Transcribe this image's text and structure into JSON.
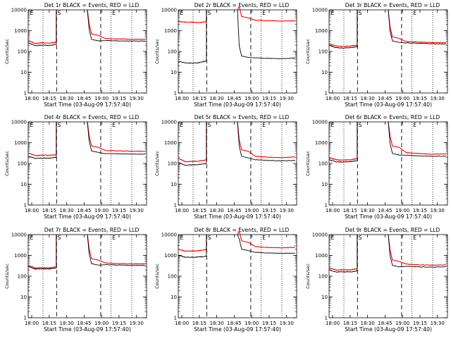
{
  "figure_title": "",
  "chart_data": [
    {
      "type": "line",
      "title": "Det 1r BLACK = Events, RED = LLD",
      "xlabel": "Start Time (03-Aug-09 17:57:40)",
      "ylabel": "Counts/sec",
      "y_scale": "log",
      "ylim": [
        1,
        10000
      ],
      "xlim": [
        0,
        40
      ],
      "x_ticks": [
        "18:00",
        "18:15",
        "18:30",
        "18:45",
        "19:00",
        "19:15",
        "19:30"
      ],
      "y_ticks": [
        "1",
        "10",
        "100",
        "1000",
        "10000"
      ],
      "grid": false,
      "markers": [
        "E",
        "S",
        "E"
      ],
      "series": [
        {
          "name": "RED = LLD",
          "color": "#ff0000",
          "pre": [
            330,
            240,
            260,
            250,
            280
          ],
          "post_peak": 700,
          "post": [
            420,
            400,
            390,
            380
          ]
        },
        {
          "name": "BLACK = Events",
          "color": "#000000",
          "pre": [
            260,
            190,
            200,
            195,
            215
          ],
          "post_peak": 380,
          "post": [
            340,
            320,
            315,
            310
          ]
        }
      ]
    },
    {
      "type": "line",
      "title": "Det 2r BLACK = Events, RED = LLD",
      "xlabel": "Start Time (03-Aug-09 17:57:40)",
      "ylabel": "Counts/sec",
      "y_scale": "log",
      "ylim": [
        1,
        10000
      ],
      "xlim": [
        0,
        40
      ],
      "x_ticks": [
        "18:00",
        "18:15",
        "18:30",
        "18:45",
        "19:00",
        "19:15",
        "19:30"
      ],
      "y_ticks": [
        "1",
        "10",
        "100",
        "1000",
        "10000"
      ],
      "grid": false,
      "markers": [
        "E",
        "S",
        "E"
      ],
      "series": [
        {
          "name": "RED = LLD",
          "color": "#ff0000",
          "pre": [
            2700,
            2600,
            2550,
            2500,
            2600
          ],
          "post_peak": 4800,
          "post": [
            3200,
            3000,
            2900,
            2950
          ]
        },
        {
          "name": "BLACK = Events",
          "color": "#000000",
          "pre": [
            34,
            28,
            27,
            29,
            35
          ],
          "post_peak": 60,
          "post": [
            50,
            46,
            45,
            48
          ]
        }
      ]
    },
    {
      "type": "line",
      "title": "Det 3r BLACK = Events, RED = LLD",
      "xlabel": "Start Time (03-Aug-09 17:57:40)",
      "ylabel": "Counts/sec",
      "y_scale": "log",
      "ylim": [
        1,
        10000
      ],
      "xlim": [
        0,
        40
      ],
      "x_ticks": [
        "18:00",
        "18:15",
        "18:30",
        "18:45",
        "19:00",
        "19:15",
        "19:30"
      ],
      "y_ticks": [
        "1",
        "10",
        "100",
        "1000",
        "10000"
      ],
      "grid": false,
      "markers": [
        "E",
        "S",
        "E"
      ],
      "series": [
        {
          "name": "RED = LLD",
          "color": "#ff0000",
          "pre": [
            240,
            180,
            175,
            180,
            200
          ],
          "post_peak": 500,
          "post": [
            300,
            280,
            270,
            265
          ]
        },
        {
          "name": "BLACK = Events",
          "color": "#000000",
          "pre": [
            200,
            150,
            145,
            150,
            170
          ],
          "post_peak": 320,
          "post": [
            260,
            245,
            235,
            230
          ]
        }
      ]
    },
    {
      "type": "line",
      "title": "Det 4r BLACK = Events, RED = LLD",
      "xlabel": "Start Time (03-Aug-09 17:57:40)",
      "ylabel": "Counts/sec",
      "y_scale": "log",
      "ylim": [
        1,
        10000
      ],
      "xlim": [
        0,
        40
      ],
      "x_ticks": [
        "18:00",
        "18:15",
        "18:30",
        "18:45",
        "19:00",
        "19:15",
        "19:30"
      ],
      "y_ticks": [
        "1",
        "10",
        "100",
        "1000",
        "10000"
      ],
      "grid": false,
      "markers": [
        "E",
        "S",
        "E"
      ],
      "series": [
        {
          "name": "RED = LLD",
          "color": "#ff0000",
          "pre": [
            310,
            240,
            250,
            245,
            270
          ],
          "post_peak": 700,
          "post": [
            420,
            400,
            390,
            385
          ]
        },
        {
          "name": "BLACK = Events",
          "color": "#000000",
          "pre": [
            220,
            175,
            180,
            178,
            200
          ],
          "post_peak": 400,
          "post": [
            300,
            290,
            285,
            280
          ]
        }
      ]
    },
    {
      "type": "line",
      "title": "Det 5r BLACK = Events, RED = LLD",
      "xlabel": "Start Time (03-Aug-09 17:57:40)",
      "ylabel": "Counts/sec",
      "y_scale": "log",
      "ylim": [
        1,
        10000
      ],
      "xlim": [
        0,
        40
      ],
      "x_ticks": [
        "18:00",
        "18:15",
        "18:30",
        "18:45",
        "19:00",
        "19:15",
        "19:30"
      ],
      "y_ticks": [
        "1",
        "10",
        "100",
        "1000",
        "10000"
      ],
      "grid": false,
      "markers": [
        "E",
        "S",
        "E"
      ],
      "series": [
        {
          "name": "RED = LLD",
          "color": "#ff0000",
          "pre": [
            180,
            120,
            125,
            130,
            150
          ],
          "post_peak": 450,
          "post": [
            220,
            200,
            190,
            210
          ]
        },
        {
          "name": "BLACK = Events",
          "color": "#000000",
          "pre": [
            110,
            80,
            85,
            90,
            100
          ],
          "post_peak": 220,
          "post": [
            150,
            140,
            135,
            140
          ]
        }
      ]
    },
    {
      "type": "line",
      "title": "Det 6r BLACK = Events, RED = LLD",
      "xlabel": "Start Time (03-Aug-09 17:57:40)",
      "ylabel": "Counts/sec",
      "y_scale": "log",
      "ylim": [
        1,
        10000
      ],
      "xlim": [
        0,
        40
      ],
      "x_ticks": [
        "18:00",
        "18:15",
        "18:30",
        "18:45",
        "19:00",
        "19:15",
        "19:30"
      ],
      "y_ticks": [
        "1",
        "10",
        "100",
        "1000",
        "10000"
      ],
      "grid": false,
      "markers": [
        "E",
        "S",
        "E"
      ],
      "series": [
        {
          "name": "RED = LLD",
          "color": "#ff0000",
          "pre": [
            190,
            150,
            145,
            150,
            170
          ],
          "post_peak": 700,
          "post": [
            330,
            300,
            280,
            290
          ]
        },
        {
          "name": "BLACK = Events",
          "color": "#000000",
          "pre": [
            150,
            120,
            118,
            122,
            135
          ],
          "post_peak": 300,
          "post": [
            250,
            230,
            220,
            225
          ]
        }
      ]
    },
    {
      "type": "line",
      "title": "Det 7r BLACK = Events, RED = LLD",
      "xlabel": "Start Time (03-Aug-09 17:57:40)",
      "ylabel": "Counts/sec",
      "y_scale": "log",
      "ylim": [
        1,
        10000
      ],
      "xlim": [
        0,
        40
      ],
      "x_ticks": [
        "18:00",
        "18:15",
        "18:30",
        "18:45",
        "19:00",
        "19:15",
        "19:30"
      ],
      "y_ticks": [
        "1",
        "10",
        "100",
        "1000",
        "10000"
      ],
      "grid": false,
      "markers": [
        "E",
        "S",
        "E"
      ],
      "series": [
        {
          "name": "RED = LLD",
          "color": "#ff0000",
          "pre": [
            320,
            250,
            255,
            250,
            275
          ],
          "post_peak": 700,
          "post": [
            430,
            400,
            395,
            390
          ]
        },
        {
          "name": "BLACK = Events",
          "color": "#000000",
          "pre": [
            290,
            220,
            225,
            222,
            245
          ],
          "post_peak": 400,
          "post": [
            360,
            340,
            335,
            330
          ]
        }
      ]
    },
    {
      "type": "line",
      "title": "Det 8r BLACK = Events, RED = LLD",
      "xlabel": "Start Time (03-Aug-09 17:57:40)",
      "ylabel": "Counts/sec",
      "y_scale": "log",
      "ylim": [
        1,
        10000
      ],
      "xlim": [
        0,
        40
      ],
      "x_ticks": [
        "18:00",
        "18:15",
        "18:30",
        "18:45",
        "19:00",
        "19:15",
        "19:30"
      ],
      "y_ticks": [
        "1",
        "10",
        "100",
        "1000",
        "10000"
      ],
      "grid": false,
      "markers": [
        "E",
        "S",
        "E"
      ],
      "series": [
        {
          "name": "RED = LLD",
          "color": "#ff0000",
          "pre": [
            2000,
            1600,
            1650,
            1700,
            1900
          ],
          "post_peak": 5000,
          "post": [
            2600,
            2400,
            2300,
            2450
          ]
        },
        {
          "name": "BLACK = Events",
          "color": "#000000",
          "pre": [
            1000,
            800,
            820,
            840,
            900
          ],
          "post_peak": 2000,
          "post": [
            1400,
            1300,
            1250,
            1300
          ]
        }
      ]
    },
    {
      "type": "line",
      "title": "Det 9r BLACK = Events, RED = LLD",
      "xlabel": "Start Time (03-Aug-09 17:57:40)",
      "ylabel": "Counts/sec",
      "y_scale": "log",
      "ylim": [
        1,
        10000
      ],
      "xlim": [
        0,
        40
      ],
      "x_ticks": [
        "18:00",
        "18:15",
        "18:30",
        "18:45",
        "19:00",
        "19:15",
        "19:30"
      ],
      "y_ticks": [
        "1",
        "10",
        "100",
        "1000",
        "10000"
      ],
      "grid": false,
      "markers": [
        "E",
        "S",
        "E"
      ],
      "series": [
        {
          "name": "RED = LLD",
          "color": "#ff0000",
          "pre": [
            250,
            200,
            205,
            200,
            230
          ],
          "post_peak": 600,
          "post": [
            380,
            350,
            340,
            345
          ]
        },
        {
          "name": "BLACK = Events",
          "color": "#000000",
          "pre": [
            200,
            160,
            162,
            160,
            180
          ],
          "post_peak": 330,
          "post": [
            300,
            280,
            275,
            280
          ]
        }
      ]
    }
  ]
}
